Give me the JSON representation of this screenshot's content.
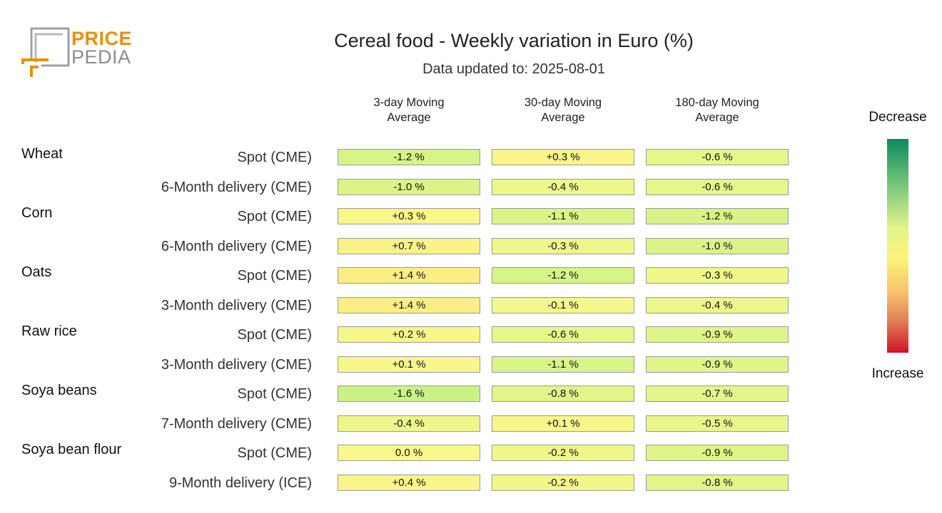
{
  "logo": {
    "line1": "PRICE",
    "line2": "PEDIA"
  },
  "chart_data": {
    "type": "heatmap",
    "title": "Cereal food - Weekly variation in Euro (%)",
    "subtitle": "Data updated to: 2025-08-01",
    "columns": [
      "3-day Moving Average",
      "30-day Moving Average",
      "180-day Moving Average"
    ],
    "groups": [
      {
        "name": "Wheat",
        "rows": [
          {
            "label": "Spot (CME)",
            "values": [
              "-1.2 %",
              "+0.3 %",
              "-0.6 %"
            ]
          },
          {
            "label": "6-Month delivery (CME)",
            "values": [
              "-1.0 %",
              "-0.4 %",
              "-0.6 %"
            ]
          }
        ]
      },
      {
        "name": "Corn",
        "rows": [
          {
            "label": "Spot (CME)",
            "values": [
              "+0.3 %",
              "-1.1 %",
              "-1.2 %"
            ]
          },
          {
            "label": "6-Month delivery (CME)",
            "values": [
              "+0.7 %",
              "-0.3 %",
              "-1.0 %"
            ]
          }
        ]
      },
      {
        "name": "Oats",
        "rows": [
          {
            "label": "Spot (CME)",
            "values": [
              "+1.4 %",
              "-1.2 %",
              "-0.3 %"
            ]
          },
          {
            "label": "3-Month delivery (CME)",
            "values": [
              "+1.4 %",
              "-0.1 %",
              "-0.4 %"
            ]
          }
        ]
      },
      {
        "name": "Raw rice",
        "rows": [
          {
            "label": "Spot (CME)",
            "values": [
              "+0.2 %",
              "-0.6 %",
              "-0.9 %"
            ]
          },
          {
            "label": "3-Month delivery (CME)",
            "values": [
              "+0.1 %",
              "-1.1 %",
              "-0.9 %"
            ]
          }
        ]
      },
      {
        "name": "Soya beans",
        "rows": [
          {
            "label": "Spot (CME)",
            "values": [
              "-1.6 %",
              "-0.8 %",
              "-0.7 %"
            ]
          },
          {
            "label": "7-Month delivery (CME)",
            "values": [
              "-0.4 %",
              "+0.1 %",
              "-0.5 %"
            ]
          }
        ]
      },
      {
        "name": "Soya bean flour",
        "rows": [
          {
            "label": "Spot (CME)",
            "values": [
              "0.0 %",
              "-0.2 %",
              "-0.9 %"
            ]
          },
          {
            "label": "9-Month delivery (ICE)",
            "values": [
              "+0.4 %",
              "-0.2 %",
              "-0.8 %"
            ]
          }
        ]
      }
    ],
    "legend": {
      "top": "Decrease",
      "bottom": "Increase"
    }
  }
}
